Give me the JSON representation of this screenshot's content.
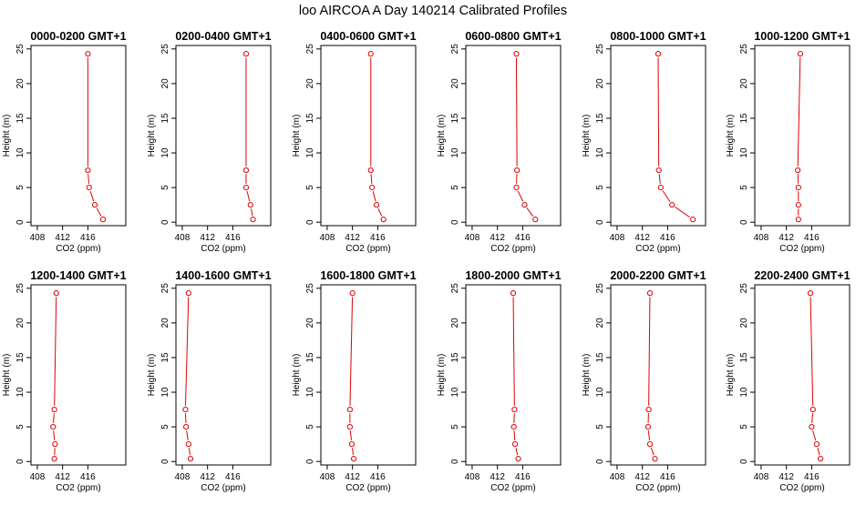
{
  "title": "loo AIRCOA A  Day 140214  Calibrated Profiles",
  "colors": {
    "series": "#dd0000",
    "axis": "#000000",
    "background": "#ffffff"
  },
  "chart_data": [
    {
      "type": "line",
      "title": "0000-0200 GMT+1",
      "xlabel": "CO2 (ppm)",
      "ylabel": "Height (m)",
      "xlim": [
        407,
        422
      ],
      "ylim": [
        -0.5,
        25.5
      ],
      "xticks": [
        408,
        412,
        416
      ],
      "yticks": [
        0,
        5,
        10,
        15,
        20,
        25
      ],
      "points": [
        {
          "x": 418.4,
          "y": 0.4
        },
        {
          "x": 417.1,
          "y": 2.5
        },
        {
          "x": 416.2,
          "y": 5
        },
        {
          "x": 416.0,
          "y": 7.5
        },
        {
          "x": 416.0,
          "y": 24.3
        }
      ]
    },
    {
      "type": "line",
      "title": "0200-0400 GMT+1",
      "xlabel": "CO2 (ppm)",
      "ylabel": "Height (m)",
      "xlim": [
        407,
        422
      ],
      "ylim": [
        -0.5,
        25.5
      ],
      "xticks": [
        408,
        412,
        416
      ],
      "yticks": [
        0,
        5,
        10,
        15,
        20,
        25
      ],
      "points": [
        {
          "x": 419.2,
          "y": 0.4
        },
        {
          "x": 418.8,
          "y": 2.5
        },
        {
          "x": 418.1,
          "y": 5
        },
        {
          "x": 418.1,
          "y": 7.5
        },
        {
          "x": 418.1,
          "y": 24.3
        }
      ]
    },
    {
      "type": "line",
      "title": "0400-0600 GMT+1",
      "xlabel": "CO2 (ppm)",
      "ylabel": "Height (m)",
      "xlim": [
        407,
        422
      ],
      "ylim": [
        -0.5,
        25.5
      ],
      "xticks": [
        408,
        412,
        416
      ],
      "yticks": [
        0,
        5,
        10,
        15,
        20,
        25
      ],
      "points": [
        {
          "x": 416.9,
          "y": 0.4
        },
        {
          "x": 415.8,
          "y": 2.5
        },
        {
          "x": 415.1,
          "y": 5
        },
        {
          "x": 414.9,
          "y": 7.5
        },
        {
          "x": 414.9,
          "y": 24.3
        }
      ]
    },
    {
      "type": "line",
      "title": "0600-0800 GMT+1",
      "xlabel": "CO2 (ppm)",
      "ylabel": "Height (m)",
      "xlim": [
        407,
        422
      ],
      "ylim": [
        -0.5,
        25.5
      ],
      "xticks": [
        408,
        412,
        416
      ],
      "yticks": [
        0,
        5,
        10,
        15,
        20,
        25
      ],
      "points": [
        {
          "x": 418.0,
          "y": 0.4
        },
        {
          "x": 416.3,
          "y": 2.5
        },
        {
          "x": 415.0,
          "y": 5
        },
        {
          "x": 415.1,
          "y": 7.5
        },
        {
          "x": 415.0,
          "y": 24.3
        }
      ]
    },
    {
      "type": "line",
      "title": "0800-1000 GMT+1",
      "xlabel": "CO2 (ppm)",
      "ylabel": "Height (m)",
      "xlim": [
        407,
        422
      ],
      "ylim": [
        -0.5,
        25.5
      ],
      "xticks": [
        408,
        412,
        416
      ],
      "yticks": [
        0,
        5,
        10,
        15,
        20,
        25
      ],
      "points": [
        {
          "x": 420.0,
          "y": 0.4
        },
        {
          "x": 416.7,
          "y": 2.5
        },
        {
          "x": 414.9,
          "y": 5
        },
        {
          "x": 414.6,
          "y": 7.5
        },
        {
          "x": 414.5,
          "y": 24.3
        }
      ]
    },
    {
      "type": "line",
      "title": "1000-1200 GMT+1",
      "xlabel": "CO2 (ppm)",
      "ylabel": "Height (m)",
      "xlim": [
        407,
        422
      ],
      "ylim": [
        -0.5,
        25.5
      ],
      "xticks": [
        408,
        412,
        416
      ],
      "yticks": [
        0,
        5,
        10,
        15,
        20,
        25
      ],
      "points": [
        {
          "x": 413.9,
          "y": 0.4
        },
        {
          "x": 413.9,
          "y": 2.5
        },
        {
          "x": 413.9,
          "y": 5
        },
        {
          "x": 413.8,
          "y": 7.5
        },
        {
          "x": 414.2,
          "y": 24.3
        }
      ]
    },
    {
      "type": "line",
      "title": "1200-1400 GMT+1",
      "xlabel": "CO2 (ppm)",
      "ylabel": "Height (m)",
      "xlim": [
        407,
        422
      ],
      "ylim": [
        -0.5,
        25.5
      ],
      "xticks": [
        408,
        412,
        416
      ],
      "yticks": [
        0,
        5,
        10,
        15,
        20,
        25
      ],
      "points": [
        {
          "x": 410.7,
          "y": 0.4
        },
        {
          "x": 410.8,
          "y": 2.5
        },
        {
          "x": 410.5,
          "y": 5
        },
        {
          "x": 410.7,
          "y": 7.5
        },
        {
          "x": 411.0,
          "y": 24.3
        }
      ]
    },
    {
      "type": "line",
      "title": "1400-1600 GMT+1",
      "xlabel": "CO2 (ppm)",
      "ylabel": "Height (m)",
      "xlim": [
        407,
        422
      ],
      "ylim": [
        -0.5,
        25.5
      ],
      "xticks": [
        408,
        412,
        416
      ],
      "yticks": [
        0,
        5,
        10,
        15,
        20,
        25
      ],
      "points": [
        {
          "x": 409.3,
          "y": 0.4
        },
        {
          "x": 409.0,
          "y": 2.5
        },
        {
          "x": 408.6,
          "y": 5
        },
        {
          "x": 408.5,
          "y": 7.5
        },
        {
          "x": 409.0,
          "y": 24.3
        }
      ]
    },
    {
      "type": "line",
      "title": "1600-1800 GMT+1",
      "xlabel": "CO2 (ppm)",
      "ylabel": "Height (m)",
      "xlim": [
        407,
        422
      ],
      "ylim": [
        -0.5,
        25.5
      ],
      "xticks": [
        408,
        412,
        416
      ],
      "yticks": [
        0,
        5,
        10,
        15,
        20,
        25
      ],
      "points": [
        {
          "x": 412.2,
          "y": 0.4
        },
        {
          "x": 411.9,
          "y": 2.5
        },
        {
          "x": 411.6,
          "y": 5
        },
        {
          "x": 411.6,
          "y": 7.5
        },
        {
          "x": 412.0,
          "y": 24.3
        }
      ]
    },
    {
      "type": "line",
      "title": "1800-2000 GMT+1",
      "xlabel": "CO2 (ppm)",
      "ylabel": "Height (m)",
      "xlim": [
        407,
        422
      ],
      "ylim": [
        -0.5,
        25.5
      ],
      "xticks": [
        408,
        412,
        416
      ],
      "yticks": [
        0,
        5,
        10,
        15,
        20,
        25
      ],
      "points": [
        {
          "x": 415.3,
          "y": 0.4
        },
        {
          "x": 414.8,
          "y": 2.5
        },
        {
          "x": 414.6,
          "y": 5
        },
        {
          "x": 414.7,
          "y": 7.5
        },
        {
          "x": 414.5,
          "y": 24.3
        }
      ]
    },
    {
      "type": "line",
      "title": "2000-2200 GMT+1",
      "xlabel": "CO2 (ppm)",
      "ylabel": "Height (m)",
      "xlim": [
        407,
        422
      ],
      "ylim": [
        -0.5,
        25.5
      ],
      "xticks": [
        408,
        412,
        416
      ],
      "yticks": [
        0,
        5,
        10,
        15,
        20,
        25
      ],
      "points": [
        {
          "x": 414.0,
          "y": 0.4
        },
        {
          "x": 413.2,
          "y": 2.5
        },
        {
          "x": 412.9,
          "y": 5
        },
        {
          "x": 413.0,
          "y": 7.5
        },
        {
          "x": 413.2,
          "y": 24.3
        }
      ]
    },
    {
      "type": "line",
      "title": "2200-2400 GMT+1",
      "xlabel": "CO2 (ppm)",
      "ylabel": "Height (m)",
      "xlim": [
        407,
        422
      ],
      "ylim": [
        -0.5,
        25.5
      ],
      "xticks": [
        408,
        412,
        416
      ],
      "yticks": [
        0,
        5,
        10,
        15,
        20,
        25
      ],
      "points": [
        {
          "x": 417.4,
          "y": 0.4
        },
        {
          "x": 416.8,
          "y": 2.5
        },
        {
          "x": 416.0,
          "y": 5
        },
        {
          "x": 416.2,
          "y": 7.5
        },
        {
          "x": 415.8,
          "y": 24.3
        }
      ]
    }
  ]
}
